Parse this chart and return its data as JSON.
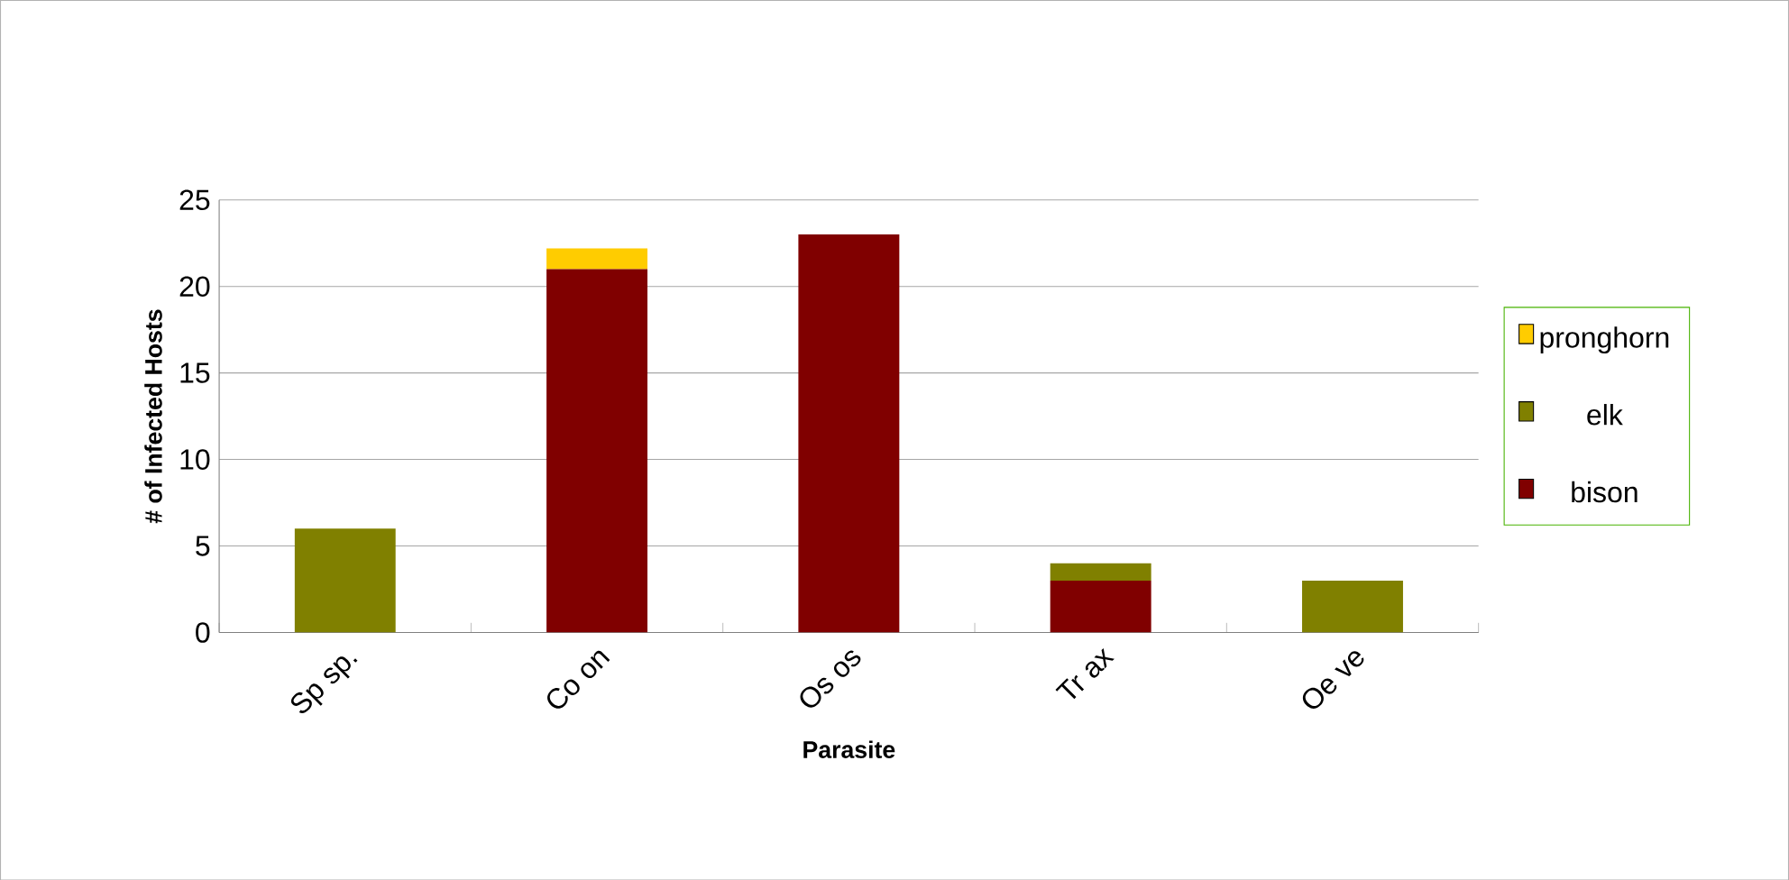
{
  "chart_data": {
    "type": "bar",
    "stacked": true,
    "xlabel": "Parasite",
    "ylabel": "# of Infected Hosts",
    "categories": [
      "Sp sp.",
      "Co on",
      "Os os",
      "Tr ax",
      "Oe ve"
    ],
    "series": [
      {
        "name": "bison",
        "color": "#800000",
        "values": [
          0,
          21,
          23,
          3,
          0
        ]
      },
      {
        "name": "elk",
        "color": "#808000",
        "values": [
          6,
          0,
          0,
          1,
          3
        ]
      },
      {
        "name": "pronghorn",
        "color": "#ffcc00",
        "values": [
          0,
          1.2,
          0,
          0,
          0
        ]
      }
    ],
    "ylim": [
      0,
      25
    ],
    "yticks": [
      0,
      5,
      10,
      15,
      20,
      25
    ],
    "grid": "y",
    "legend": "right"
  }
}
